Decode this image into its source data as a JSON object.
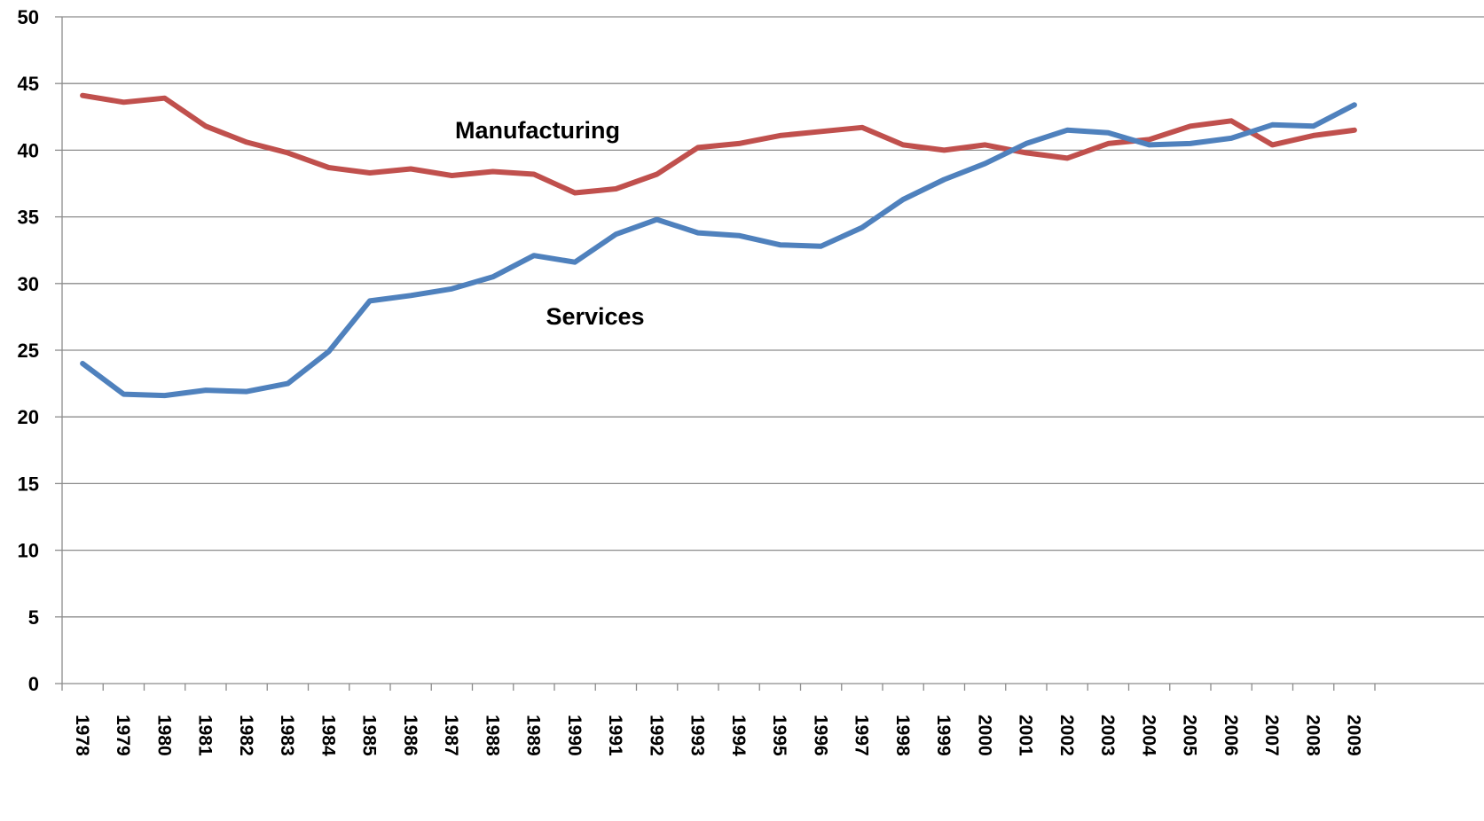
{
  "chart_data": {
    "type": "line",
    "title": "",
    "xlabel": "",
    "ylabel": "",
    "ylim": [
      0,
      50
    ],
    "y_ticks": [
      "0",
      "5",
      "10",
      "15",
      "20",
      "25",
      "30",
      "35",
      "40",
      "45",
      "50"
    ],
    "grid": true,
    "legend": "none",
    "categories": [
      "1978",
      "1979",
      "1980",
      "1981",
      "1982",
      "1983",
      "1984",
      "1985",
      "1986",
      "1987",
      "1988",
      "1989",
      "1990",
      "1991",
      "1992",
      "1993",
      "1994",
      "1995",
      "1996",
      "1997",
      "1998",
      "1999",
      "2000",
      "2001",
      "2002",
      "2003",
      "2004",
      "2005",
      "2006",
      "2007",
      "2008",
      "2009"
    ],
    "series": [
      {
        "name": "Manufacturing",
        "color": "#c0504d",
        "values": [
          44.1,
          43.6,
          43.9,
          41.8,
          40.6,
          39.8,
          38.7,
          38.3,
          38.6,
          38.1,
          38.4,
          38.2,
          36.8,
          37.1,
          38.2,
          40.2,
          40.5,
          41.1,
          41.4,
          41.7,
          40.4,
          40.0,
          40.4,
          39.8,
          39.4,
          40.5,
          40.8,
          41.8,
          42.2,
          40.4,
          41.1,
          41.5
        ]
      },
      {
        "name": "Services",
        "color": "#4f81bd",
        "values": [
          24.0,
          21.7,
          21.6,
          22.0,
          21.9,
          22.5,
          24.9,
          28.7,
          29.1,
          29.6,
          30.5,
          32.1,
          31.6,
          33.7,
          34.8,
          33.8,
          33.6,
          32.9,
          32.8,
          34.2,
          36.3,
          37.8,
          39.0,
          40.5,
          41.5,
          41.3,
          40.4,
          40.5,
          40.9,
          41.9,
          41.8,
          43.4
        ]
      }
    ]
  }
}
